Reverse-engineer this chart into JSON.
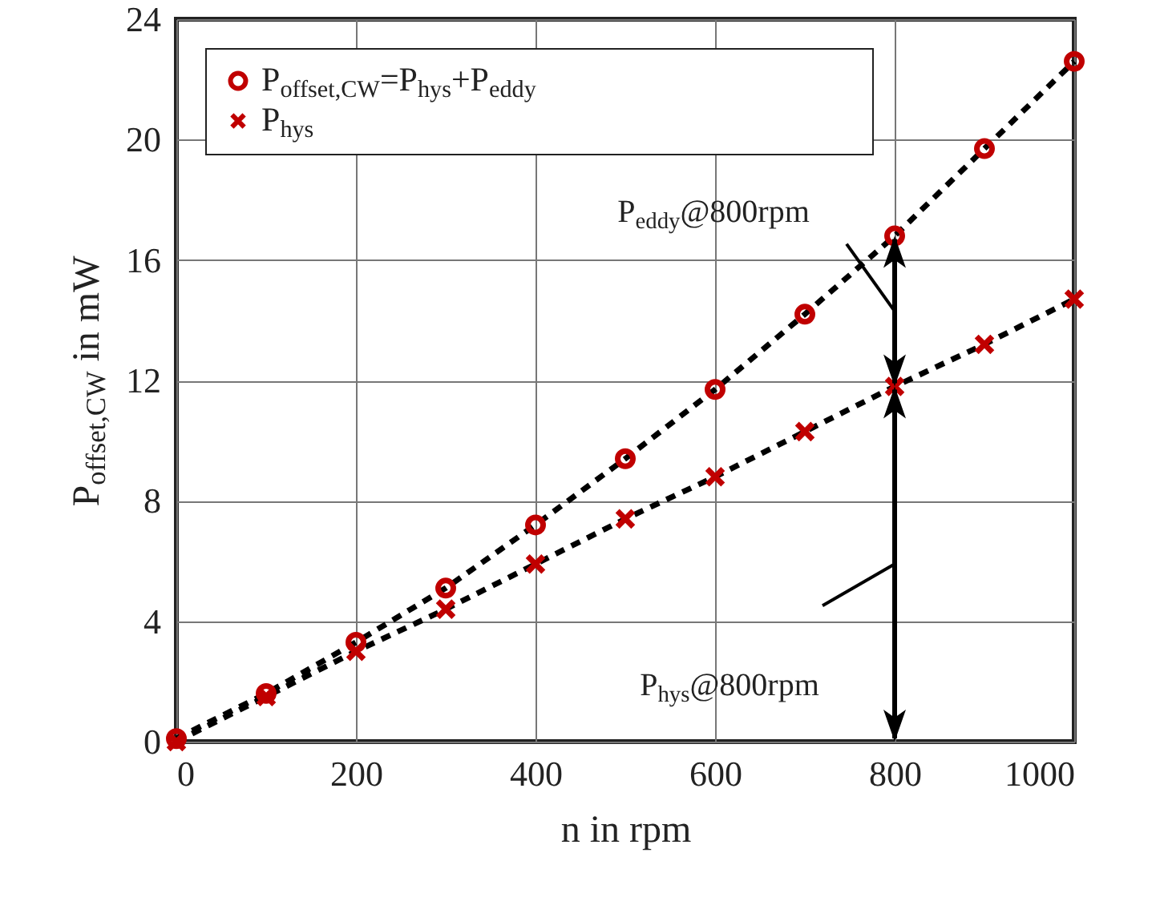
{
  "chart_data": {
    "type": "scatter",
    "xlabel": "n in rpm",
    "ylabel": "P$_{offset,CW}$ in mW",
    "xlim": [
      0,
      1000
    ],
    "xticks": [
      0,
      200,
      400,
      600,
      800,
      1000
    ],
    "ylim": [
      0,
      24
    ],
    "yticks": [
      0,
      4,
      8,
      12,
      16,
      20,
      24
    ],
    "grid": true,
    "legend": "top left",
    "series": [
      {
        "name": "P$_{offset,CW}$=P$_{hys}$+P$_{eddy}$",
        "marker": "circle",
        "color": "#c00000",
        "x": [
          0,
          100,
          200,
          300,
          400,
          500,
          600,
          700,
          800,
          900,
          1000
        ],
        "values": [
          0.1,
          1.6,
          3.3,
          5.1,
          7.2,
          9.4,
          11.7,
          14.2,
          16.8,
          19.7,
          22.6
        ]
      },
      {
        "name": "P$_{hys}$",
        "marker": "cross",
        "color": "#c00000",
        "x": [
          0,
          100,
          200,
          300,
          400,
          500,
          600,
          700,
          800,
          900,
          1000
        ],
        "values": [
          0,
          1.5,
          3.0,
          4.4,
          5.9,
          7.4,
          8.8,
          10.3,
          11.8,
          13.2,
          14.7
        ]
      },
      {
        "type": "line",
        "line_style": "dashed",
        "color": "#000000",
        "x": [
          0,
          100,
          200,
          300,
          400,
          500,
          600,
          700,
          800,
          900,
          1000
        ],
        "values": [
          0.1,
          1.6,
          3.3,
          5.1,
          7.2,
          9.4,
          11.7,
          14.2,
          16.8,
          19.7,
          22.6
        ]
      },
      {
        "type": "line",
        "line_style": "dashed",
        "color": "#000000",
        "x": [
          0,
          100,
          200,
          300,
          400,
          500,
          600,
          700,
          800,
          900,
          1000
        ],
        "values": [
          0,
          1.5,
          3.0,
          4.4,
          5.9,
          7.4,
          8.8,
          10.3,
          11.8,
          13.2,
          14.7
        ]
      }
    ],
    "annotations": [
      {
        "text": "P$_{eddy}$@800rpm",
        "x": 800,
        "y": 16.8
      },
      "P$_{hys}$@800rpm"
    ]
  }
}
